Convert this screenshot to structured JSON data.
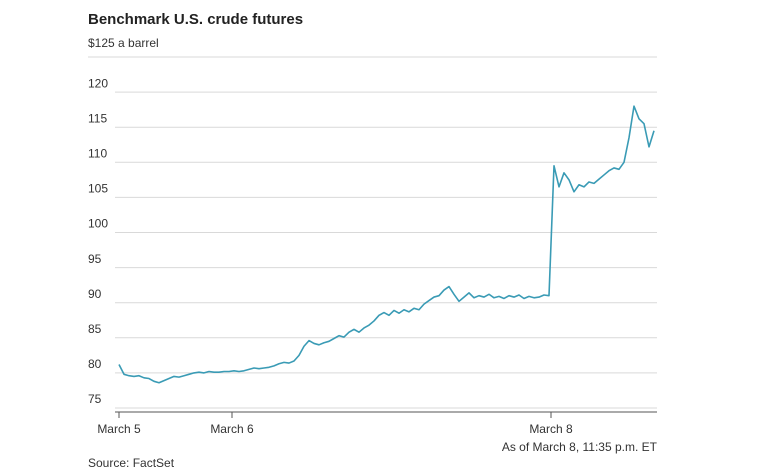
{
  "chart_data": {
    "type": "line",
    "title": "Benchmark U.S. crude futures",
    "note": "As of March 8, 11:35 p.m. ET",
    "source": "Source: FactSet",
    "x": [
      0,
      1,
      2,
      3,
      4,
      5,
      6,
      7,
      8,
      9,
      10,
      11,
      12,
      13,
      14,
      15,
      16,
      17,
      18,
      19,
      20,
      21,
      22,
      23,
      24,
      25,
      26,
      27,
      28,
      29,
      30,
      31,
      32,
      33,
      34,
      35,
      36,
      37,
      38,
      39,
      40,
      41,
      42,
      43,
      44,
      45,
      46,
      47,
      48,
      49,
      50,
      51,
      52,
      53,
      54,
      55,
      56,
      57,
      58,
      59,
      60,
      61,
      62,
      63,
      64,
      65,
      66,
      67,
      68,
      69,
      70,
      71,
      72,
      73,
      74,
      75,
      76,
      77,
      78,
      79,
      80,
      81,
      82,
      83,
      84,
      85,
      86,
      87,
      88,
      89,
      90,
      91,
      92,
      93,
      94,
      95,
      96,
      97,
      98,
      99,
      100,
      101,
      102,
      103,
      104,
      105,
      106,
      107
    ],
    "series": [
      {
        "name": "Crude futures",
        "color": "#3a9bb5",
        "values": [
          81.2,
          79.8,
          79.6,
          79.5,
          79.6,
          79.3,
          79.2,
          78.8,
          78.6,
          78.9,
          79.2,
          79.5,
          79.4,
          79.6,
          79.8,
          80.0,
          80.1,
          80.0,
          80.2,
          80.1,
          80.1,
          80.2,
          80.2,
          80.3,
          80.2,
          80.3,
          80.5,
          80.7,
          80.6,
          80.7,
          80.8,
          81.0,
          81.3,
          81.5,
          81.4,
          81.7,
          82.5,
          83.8,
          84.6,
          84.2,
          84.0,
          84.3,
          84.5,
          84.9,
          85.3,
          85.1,
          85.8,
          86.2,
          85.8,
          86.4,
          86.8,
          87.4,
          88.2,
          88.6,
          88.2,
          88.9,
          88.5,
          89.0,
          88.7,
          89.2,
          89.0,
          89.8,
          90.3,
          90.8,
          91.0,
          91.8,
          92.3,
          91.2,
          90.2,
          90.8,
          91.4,
          90.7,
          91.0,
          90.8,
          91.2,
          90.7,
          90.9,
          90.6,
          91.0,
          90.8,
          91.1,
          90.6,
          90.9,
          90.7,
          90.8,
          91.1,
          91.0,
          109.5,
          106.5,
          108.5,
          107.5,
          105.8,
          106.8,
          106.5,
          107.2,
          107.0,
          107.6,
          108.2,
          108.8,
          109.2,
          109.0,
          110.0,
          113.5,
          118.0,
          116.2,
          115.5,
          112.2,
          114.5
        ]
      }
    ],
    "xlim": [
      0,
      107.6
    ],
    "xticks": [
      {
        "value": 0,
        "label": "March 5"
      },
      {
        "value": 22.6,
        "label": "March 6"
      },
      {
        "value": 86.4,
        "label": "March 8"
      }
    ],
    "ylim": [
      75,
      125
    ],
    "yticks": [
      75,
      80,
      85,
      90,
      95,
      100,
      105,
      110,
      115,
      120,
      {
        "value": 125,
        "label": "$125 a barrel"
      }
    ],
    "grid": true
  }
}
